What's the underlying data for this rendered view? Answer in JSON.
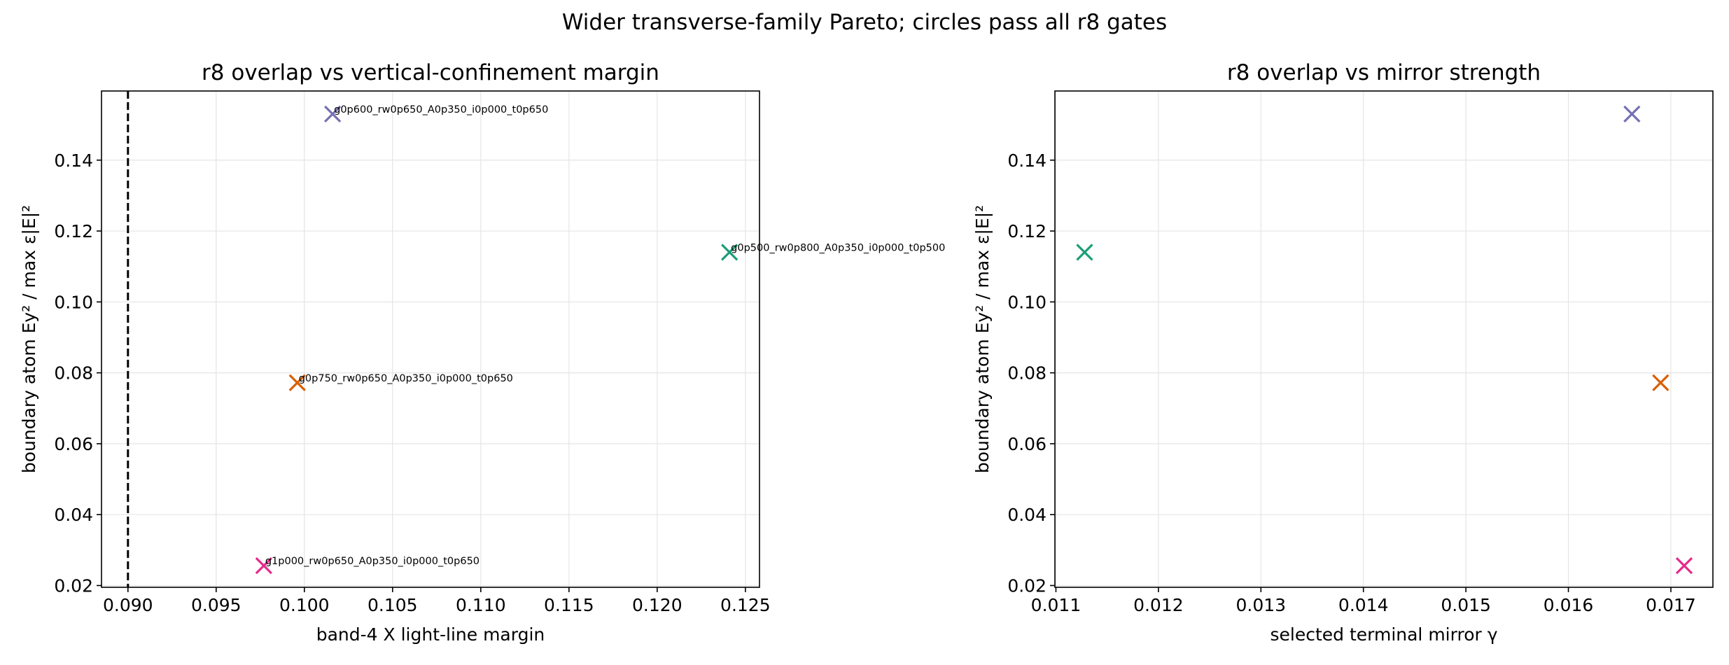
{
  "figure": {
    "suptitle": "Wider transverse-family Pareto; circles pass all r8 gates"
  },
  "colors": {
    "purple": "#7570b3",
    "green": "#1b9e77",
    "orange": "#d95f02",
    "pink": "#e7298a",
    "reference_line": "#000000",
    "grid": "#e5e5e5"
  },
  "chart_data": [
    {
      "type": "scatter",
      "title": "r8 overlap vs vertical-confinement margin",
      "xlabel": "band-4 X light-line margin",
      "ylabel": "boundary atom Ey² / max ε|E|²",
      "xlim": [
        0.0885,
        0.1258
      ],
      "ylim": [
        0.0195,
        0.1595
      ],
      "grid": true,
      "xticks": [
        0.09,
        0.095,
        0.1,
        0.105,
        0.11,
        0.115,
        0.12,
        0.125
      ],
      "xtick_labels": [
        "0.090",
        "0.095",
        "0.100",
        "0.105",
        "0.110",
        "0.115",
        "0.120",
        "0.125"
      ],
      "yticks": [
        0.02,
        0.04,
        0.06,
        0.08,
        0.1,
        0.12,
        0.14
      ],
      "ytick_labels": [
        "0.02",
        "0.04",
        "0.06",
        "0.08",
        "0.10",
        "0.12",
        "0.14"
      ],
      "reference_lines": [
        {
          "orientation": "vertical",
          "x": 0.09,
          "style": "dashed"
        }
      ],
      "points": [
        {
          "label": "g0p600_rw0p650_A0p350_i0p000_t0p650",
          "x": 0.1016,
          "y": 0.153,
          "color": "#7570b3",
          "marker": "x"
        },
        {
          "label": "g0p500_rw0p800_A0p350_i0p000_t0p500",
          "x": 0.1241,
          "y": 0.114,
          "color": "#1b9e77",
          "marker": "x"
        },
        {
          "label": "g0p750_rw0p650_A0p350_i0p000_t0p650",
          "x": 0.0996,
          "y": 0.0772,
          "color": "#d95f02",
          "marker": "x"
        },
        {
          "label": "g1p000_rw0p650_A0p350_i0p000_t0p650",
          "x": 0.0977,
          "y": 0.0256,
          "color": "#e7298a",
          "marker": "x"
        }
      ]
    },
    {
      "type": "scatter",
      "title": "r8 overlap vs mirror strength",
      "xlabel": "selected terminal mirror γ",
      "ylabel": "boundary atom Ey² / max ε|E|²",
      "xlim": [
        0.01099,
        0.01741
      ],
      "ylim": [
        0.0195,
        0.1595
      ],
      "grid": true,
      "xticks": [
        0.011,
        0.012,
        0.013,
        0.014,
        0.015,
        0.016,
        0.017
      ],
      "xtick_labels": [
        "0.011",
        "0.012",
        "0.013",
        "0.014",
        "0.015",
        "0.016",
        "0.017"
      ],
      "yticks": [
        0.02,
        0.04,
        0.06,
        0.08,
        0.1,
        0.12,
        0.14
      ],
      "ytick_labels": [
        "0.02",
        "0.04",
        "0.06",
        "0.08",
        "0.10",
        "0.12",
        "0.14"
      ],
      "points": [
        {
          "x": 0.01662,
          "y": 0.153,
          "color": "#7570b3",
          "marker": "x"
        },
        {
          "x": 0.01128,
          "y": 0.114,
          "color": "#1b9e77",
          "marker": "x"
        },
        {
          "x": 0.0169,
          "y": 0.0772,
          "color": "#d95f02",
          "marker": "x"
        },
        {
          "x": 0.01713,
          "y": 0.0256,
          "color": "#e7298a",
          "marker": "x"
        }
      ]
    }
  ]
}
